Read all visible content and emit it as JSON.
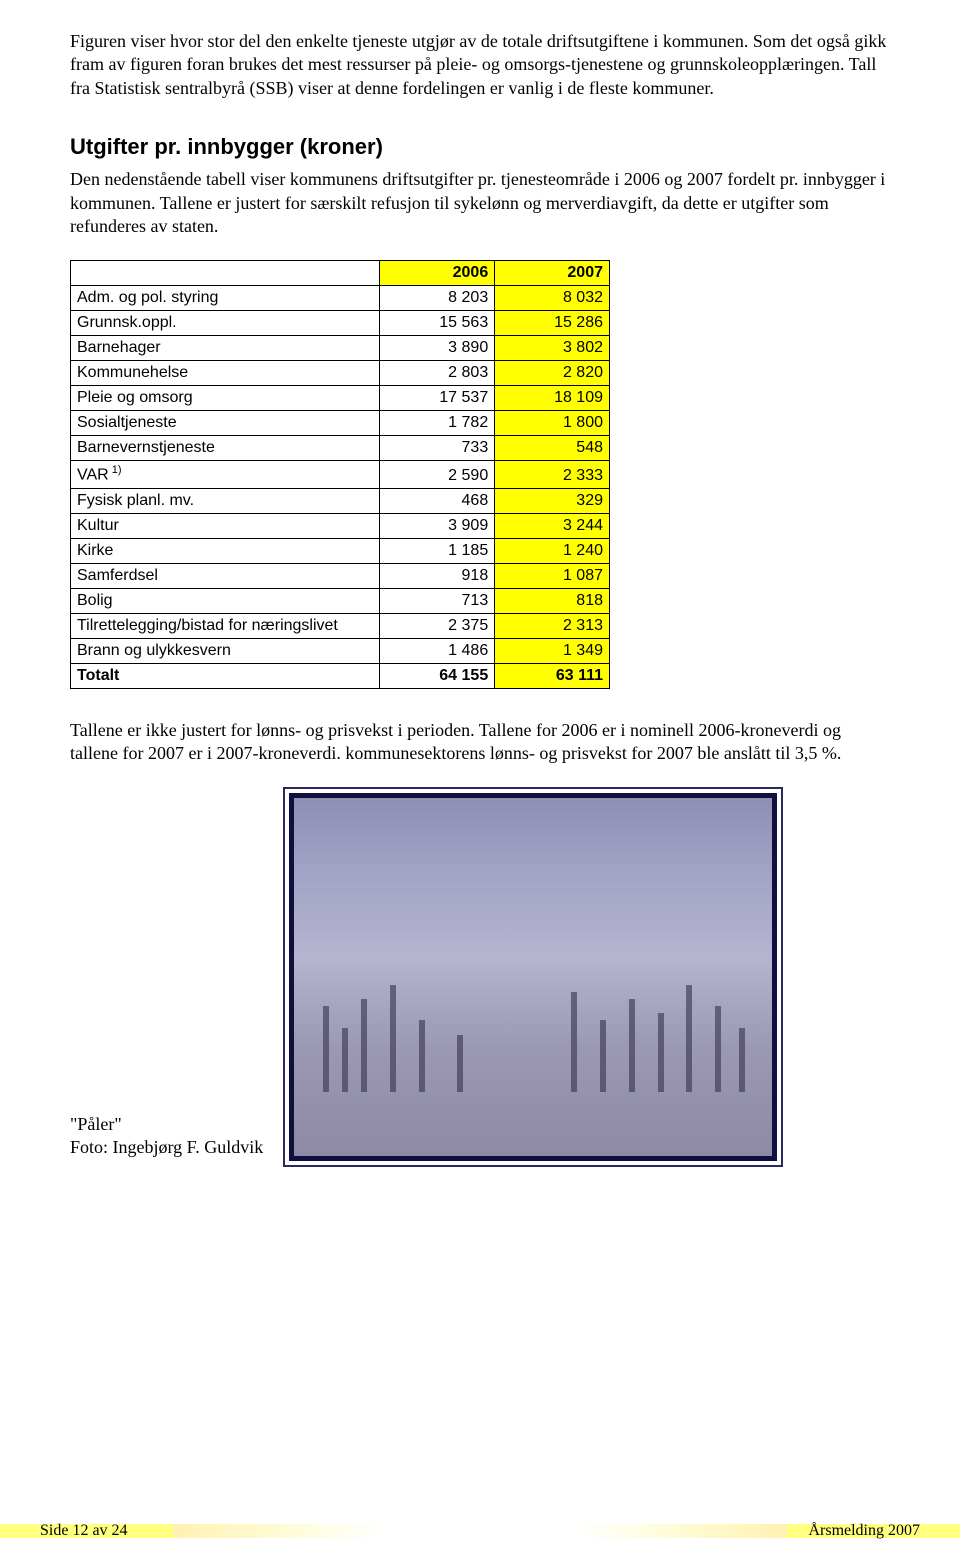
{
  "intro_paragraph": "Figuren viser hvor stor del den enkelte tjeneste utgjør av de totale driftsutgiftene i kommunen. Som det også gikk fram av figuren foran brukes det mest ressurser på pleie- og omsorgs-tjenestene og grunnskoleopplæringen. Tall fra Statistisk sentralbyrå (SSB) viser at denne fordelingen er vanlig i de fleste kommuner.",
  "heading": "Utgifter pr. innbygger (kroner)",
  "heading_paragraph": "Den nedenstående tabell viser kommunens driftsutgifter pr. tjenesteområde i 2006 og 2007 fordelt pr. innbygger i kommunen. Tallene er justert for særskilt refusjon til sykelønn og merverdiavgift, da dette er utgifter som refunderes av staten.",
  "table": {
    "header_2006_bg": "#ffff00",
    "header_2007_bg": "#ffff00",
    "col_2007_bg": "#ffff00",
    "cols": [
      "",
      "2006",
      "2007"
    ],
    "rows": [
      {
        "label": "Adm. og pol. styring",
        "y2006": "8 203",
        "y2007": "8 032"
      },
      {
        "label": "Grunnsk.oppl.",
        "y2006": "15 563",
        "y2007": "15 286"
      },
      {
        "label": "Barnehager",
        "y2006": "3 890",
        "y2007": "3 802"
      },
      {
        "label": "Kommunehelse",
        "y2006": "2 803",
        "y2007": "2 820"
      },
      {
        "label": "Pleie og omsorg",
        "y2006": "17 537",
        "y2007": "18 109"
      },
      {
        "label": "Sosialtjeneste",
        "y2006": "1 782",
        "y2007": "1 800"
      },
      {
        "label": "Barnevernstjeneste",
        "y2006": "733",
        "y2007": "548"
      },
      {
        "label": "VAR",
        "sup": "1)",
        "y2006": "2 590",
        "y2007": "2 333"
      },
      {
        "label": "Fysisk planl. mv.",
        "y2006": "468",
        "y2007": "329"
      },
      {
        "label": "Kultur",
        "y2006": "3 909",
        "y2007": "3 244"
      },
      {
        "label": "Kirke",
        "y2006": "1 185",
        "y2007": "1 240"
      },
      {
        "label": "Samferdsel",
        "y2006": "918",
        "y2007": "1 087"
      },
      {
        "label": "Bolig",
        "y2006": "713",
        "y2007": "818"
      },
      {
        "label": "Tilrettelegging/bistad for næringslivet",
        "y2006": "2 375",
        "y2007": "2 313"
      },
      {
        "label": "Brann og ulykkesvern",
        "y2006": "1 486",
        "y2007": "1 349"
      }
    ],
    "total": {
      "label": "Totalt",
      "y2006": "64 155",
      "y2007": "63 111"
    }
  },
  "post_paragraph": "Tallene er ikke justert for lønns- og prisvekst i perioden. Tallene for 2006 er i nominell 2006-kroneverdi og tallene for 2007 er i 2007-kroneverdi. kommunesektorens lønns- og prisvekst for 2007 ble anslått til 3,5 %.",
  "photo": {
    "title": "\"Påler\"",
    "credit": "Foto: Ingebjørg F. Guldvik",
    "poles": [
      {
        "left_pct": 6,
        "h_pct": 24
      },
      {
        "left_pct": 10,
        "h_pct": 18
      },
      {
        "left_pct": 14,
        "h_pct": 26
      },
      {
        "left_pct": 20,
        "h_pct": 30
      },
      {
        "left_pct": 26,
        "h_pct": 20
      },
      {
        "left_pct": 34,
        "h_pct": 16
      },
      {
        "left_pct": 58,
        "h_pct": 28
      },
      {
        "left_pct": 64,
        "h_pct": 20
      },
      {
        "left_pct": 70,
        "h_pct": 26
      },
      {
        "left_pct": 76,
        "h_pct": 22
      },
      {
        "left_pct": 82,
        "h_pct": 30
      },
      {
        "left_pct": 88,
        "h_pct": 24
      },
      {
        "left_pct": 93,
        "h_pct": 18
      }
    ]
  },
  "footer": {
    "left": "Side 12 av 24",
    "right": "Årsmelding 2007"
  }
}
